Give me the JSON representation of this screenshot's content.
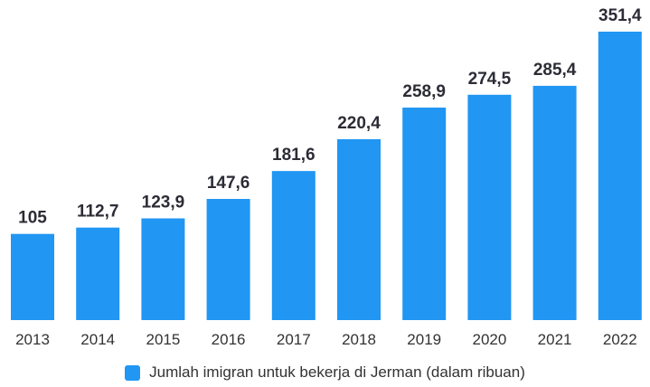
{
  "colors": {
    "bar": "#2196f3",
    "value_label": "#2c2c36",
    "tick_label": "#333333"
  },
  "chart_data": {
    "type": "bar",
    "title": "",
    "xlabel": "",
    "ylabel": "",
    "grid": false,
    "legend_position": "bottom-center",
    "ylim": [
      0,
      370
    ],
    "categories": [
      "2013",
      "2014",
      "2015",
      "2016",
      "2017",
      "2018",
      "2019",
      "2020",
      "2021",
      "2022"
    ],
    "series": [
      {
        "name": "Jumlah imigran untuk bekerja di Jerman (dalam ribuan)",
        "values": [
          105,
          112.7,
          123.9,
          147.6,
          181.6,
          220.4,
          258.9,
          274.5,
          285.4,
          351.4
        ],
        "labels": [
          "105",
          "112,7",
          "123,9",
          "147,6",
          "181,6",
          "220,4",
          "258,9",
          "274,5",
          "285,4",
          "351,4"
        ]
      }
    ]
  }
}
